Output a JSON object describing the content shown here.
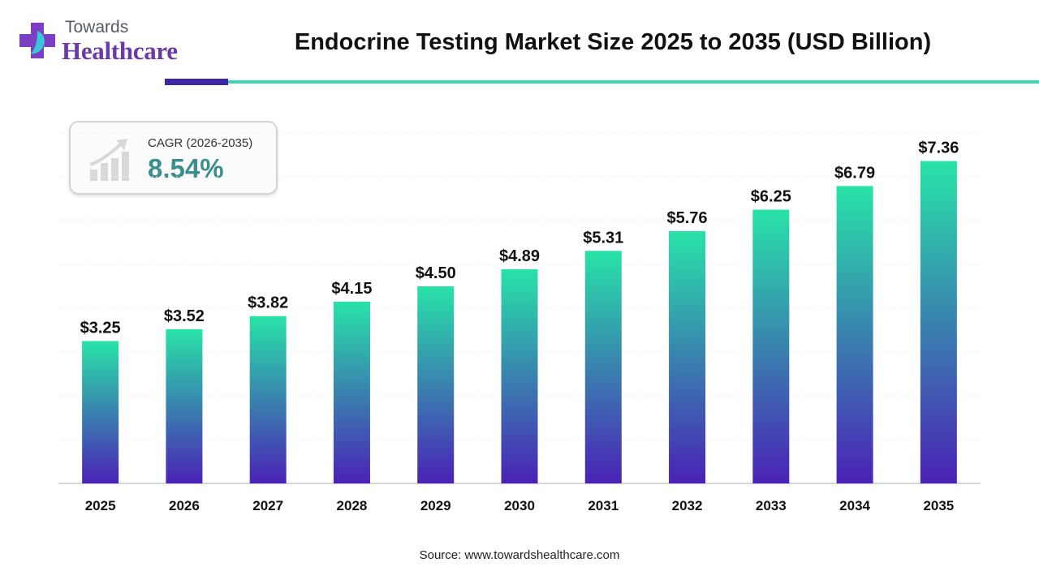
{
  "brand": {
    "line1": "Towards",
    "line2": "Healthcare"
  },
  "cagr": {
    "label": "CAGR (2026-2035)",
    "value": "8.54%"
  },
  "source": "Source: www.towardshealthcare.com",
  "colors": {
    "bar_top": "#28e3a8",
    "bar_bottom": "#4a22b6",
    "rule_dark": "#3e27a6",
    "rule_teal": "#3fd3b2",
    "cagr_text": "#3a8e8f"
  },
  "chart_data": {
    "type": "bar",
    "title": "Endocrine Testing Market Size 2025 to 2035 (USD Billion)",
    "categories": [
      "2025",
      "2026",
      "2027",
      "2028",
      "2029",
      "2030",
      "2031",
      "2032",
      "2033",
      "2034",
      "2035"
    ],
    "values": [
      3.25,
      3.52,
      3.82,
      4.15,
      4.5,
      4.89,
      5.31,
      5.76,
      6.25,
      6.79,
      7.36
    ],
    "value_labels": [
      "$3.25",
      "$3.52",
      "$3.82",
      "$4.15",
      "$4.50",
      "$4.89",
      "$5.31",
      "$5.76",
      "$6.25",
      "$6.79",
      "$7.36"
    ],
    "xlabel": "",
    "ylabel": "",
    "ylim": [
      0,
      8
    ],
    "grid": true,
    "legend": false
  }
}
